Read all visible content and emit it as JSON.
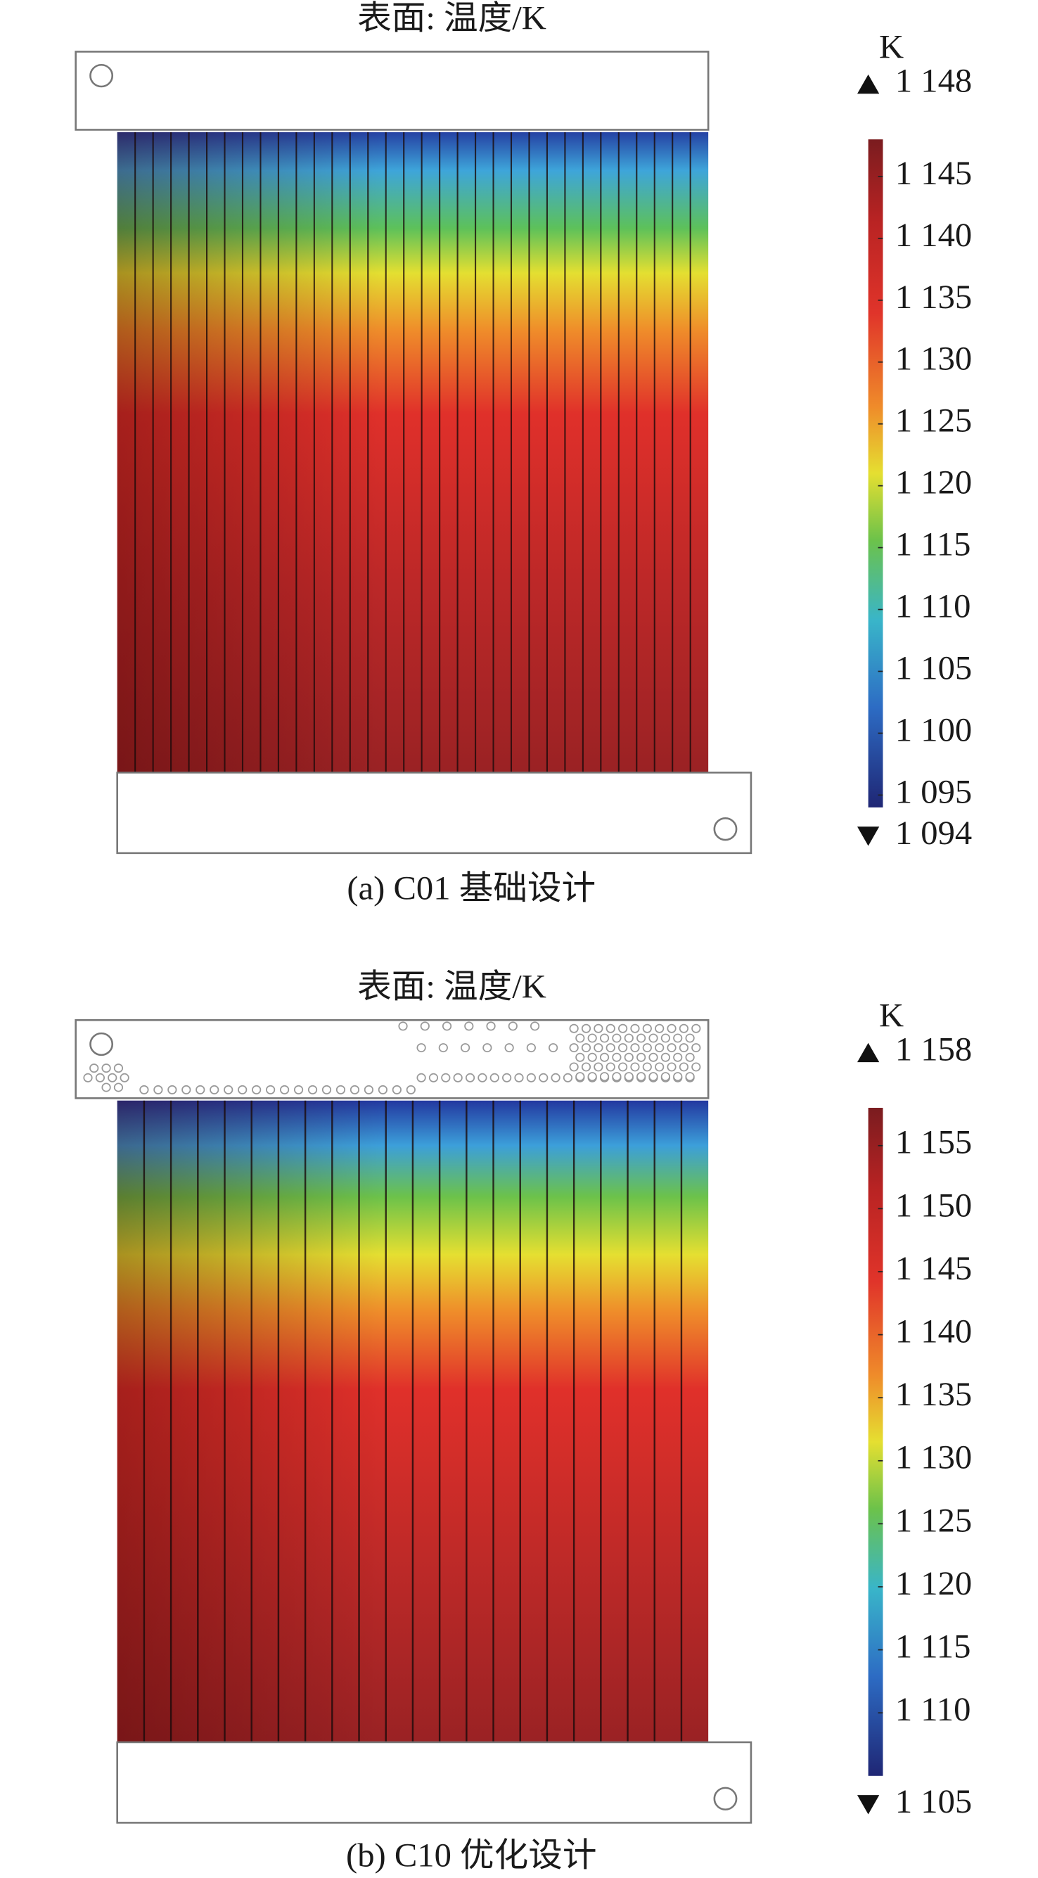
{
  "chart_data": [
    {
      "type": "heatmap",
      "title": "表面: 温度/K",
      "caption": "(a) C01 基础设计",
      "colorbar": {
        "unit": "K",
        "max": {
          "value": 1148,
          "label": "1 148"
        },
        "min": {
          "value": 1094,
          "label": "1 094"
        },
        "ticks": [
          {
            "value": 1145,
            "label": "1 145"
          },
          {
            "value": 1140,
            "label": "1 140"
          },
          {
            "value": 1135,
            "label": "1 135"
          },
          {
            "value": 1130,
            "label": "1 130"
          },
          {
            "value": 1125,
            "label": "1 125"
          },
          {
            "value": 1120,
            "label": "1 120"
          },
          {
            "value": 1115,
            "label": "1 115"
          },
          {
            "value": 1110,
            "label": "1 110"
          },
          {
            "value": 1105,
            "label": "1 105"
          },
          {
            "value": 1100,
            "label": "1 100"
          },
          {
            "value": 1095,
            "label": "1 095"
          }
        ]
      }
    },
    {
      "type": "heatmap",
      "title": "表面: 温度/K",
      "caption": "(b) C10 优化设计",
      "colorbar": {
        "unit": "K",
        "max": {
          "value": 1158,
          "label": "1 158"
        },
        "min": {
          "value": 1105,
          "label": "1 105"
        },
        "ticks": [
          {
            "value": 1155,
            "label": "1 155"
          },
          {
            "value": 1150,
            "label": "1 150"
          },
          {
            "value": 1145,
            "label": "1 145"
          },
          {
            "value": 1140,
            "label": "1 140"
          },
          {
            "value": 1135,
            "label": "1 135"
          },
          {
            "value": 1130,
            "label": "1 130"
          },
          {
            "value": 1125,
            "label": "1 125"
          },
          {
            "value": 1120,
            "label": "1 120"
          },
          {
            "value": 1115,
            "label": "1 115"
          },
          {
            "value": 1110,
            "label": "1 110"
          }
        ]
      }
    }
  ]
}
